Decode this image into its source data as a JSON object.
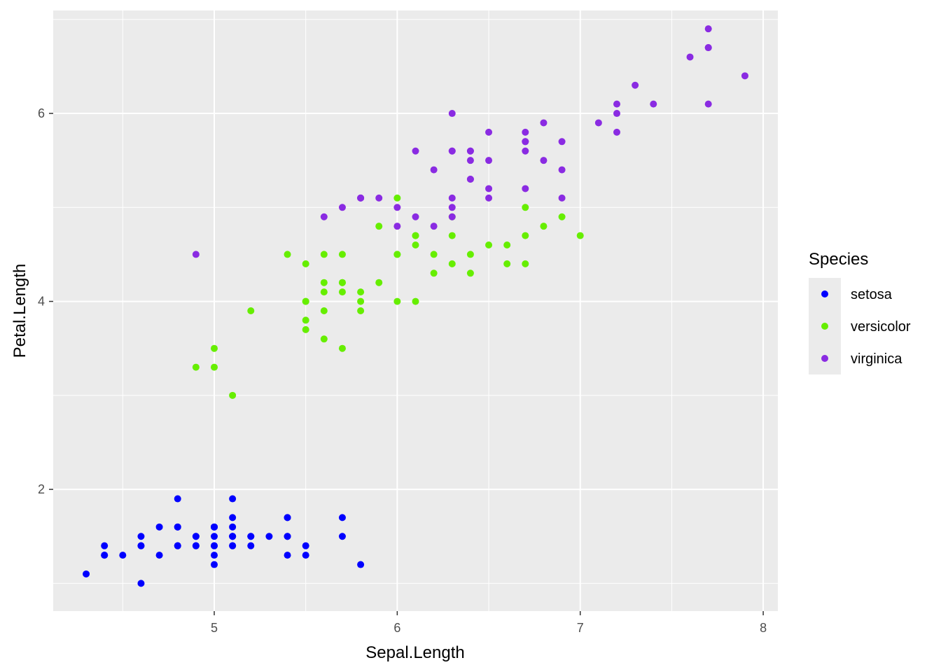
{
  "chart_data": {
    "type": "scatter",
    "xlabel": "Sepal.Length",
    "ylabel": "Petal.Length",
    "xlim": [
      4.12,
      8.08
    ],
    "ylim": [
      0.705,
      7.095
    ],
    "x_ticks": [
      5,
      6,
      7,
      8
    ],
    "x_tick_labels": [
      "5",
      "6",
      "7",
      "8"
    ],
    "y_ticks": [
      2,
      4,
      6
    ],
    "y_tick_labels": [
      "2",
      "4",
      "6"
    ],
    "grid": true,
    "legend": {
      "title": "Species",
      "position": "right"
    },
    "series": [
      {
        "name": "setosa",
        "color": "#0000ff",
        "points": [
          [
            5.1,
            1.4
          ],
          [
            4.9,
            1.4
          ],
          [
            4.7,
            1.3
          ],
          [
            4.6,
            1.5
          ],
          [
            5.0,
            1.4
          ],
          [
            5.4,
            1.7
          ],
          [
            4.6,
            1.4
          ],
          [
            5.0,
            1.5
          ],
          [
            4.4,
            1.4
          ],
          [
            4.9,
            1.5
          ],
          [
            5.4,
            1.5
          ],
          [
            4.8,
            1.6
          ],
          [
            4.8,
            1.4
          ],
          [
            4.3,
            1.1
          ],
          [
            5.8,
            1.2
          ],
          [
            5.7,
            1.5
          ],
          [
            5.4,
            1.3
          ],
          [
            5.1,
            1.4
          ],
          [
            5.7,
            1.7
          ],
          [
            5.1,
            1.5
          ],
          [
            5.4,
            1.7
          ],
          [
            5.1,
            1.5
          ],
          [
            4.6,
            1.0
          ],
          [
            5.1,
            1.7
          ],
          [
            4.8,
            1.9
          ],
          [
            5.0,
            1.6
          ],
          [
            5.0,
            1.6
          ],
          [
            5.2,
            1.5
          ],
          [
            5.2,
            1.4
          ],
          [
            4.7,
            1.6
          ],
          [
            4.8,
            1.6
          ],
          [
            5.4,
            1.5
          ],
          [
            5.2,
            1.5
          ],
          [
            5.5,
            1.4
          ],
          [
            4.9,
            1.5
          ],
          [
            5.0,
            1.2
          ],
          [
            5.5,
            1.3
          ],
          [
            4.9,
            1.4
          ],
          [
            4.4,
            1.3
          ],
          [
            5.1,
            1.5
          ],
          [
            5.0,
            1.3
          ],
          [
            4.5,
            1.3
          ],
          [
            4.4,
            1.3
          ],
          [
            5.0,
            1.6
          ],
          [
            5.1,
            1.9
          ],
          [
            4.8,
            1.4
          ],
          [
            5.1,
            1.6
          ],
          [
            4.6,
            1.4
          ],
          [
            5.3,
            1.5
          ],
          [
            5.0,
            1.4
          ]
        ]
      },
      {
        "name": "versicolor",
        "color": "#66ee00",
        "points": [
          [
            7.0,
            4.7
          ],
          [
            6.4,
            4.5
          ],
          [
            6.9,
            4.9
          ],
          [
            5.5,
            4.0
          ],
          [
            6.5,
            4.6
          ],
          [
            5.7,
            4.5
          ],
          [
            6.3,
            4.7
          ],
          [
            4.9,
            3.3
          ],
          [
            6.6,
            4.6
          ],
          [
            5.2,
            3.9
          ],
          [
            5.0,
            3.5
          ],
          [
            5.9,
            4.2
          ],
          [
            6.0,
            4.0
          ],
          [
            6.1,
            4.7
          ],
          [
            5.6,
            3.6
          ],
          [
            6.7,
            4.4
          ],
          [
            5.6,
            4.5
          ],
          [
            5.8,
            4.1
          ],
          [
            6.2,
            4.5
          ],
          [
            5.6,
            3.9
          ],
          [
            5.9,
            4.8
          ],
          [
            6.1,
            4.0
          ],
          [
            6.3,
            4.9
          ],
          [
            6.1,
            4.7
          ],
          [
            6.4,
            4.3
          ],
          [
            6.6,
            4.4
          ],
          [
            6.8,
            4.8
          ],
          [
            6.7,
            5.0
          ],
          [
            6.0,
            4.5
          ],
          [
            5.7,
            3.5
          ],
          [
            5.5,
            3.8
          ],
          [
            5.5,
            3.7
          ],
          [
            5.8,
            3.9
          ],
          [
            6.0,
            5.1
          ],
          [
            5.4,
            4.5
          ],
          [
            6.0,
            4.5
          ],
          [
            6.7,
            4.7
          ],
          [
            6.3,
            4.4
          ],
          [
            5.6,
            4.1
          ],
          [
            5.5,
            4.0
          ],
          [
            5.5,
            4.4
          ],
          [
            6.1,
            4.6
          ],
          [
            5.8,
            4.0
          ],
          [
            5.0,
            3.3
          ],
          [
            5.6,
            4.2
          ],
          [
            5.7,
            4.2
          ],
          [
            5.7,
            4.2
          ],
          [
            6.2,
            4.3
          ],
          [
            5.1,
            3.0
          ],
          [
            5.7,
            4.1
          ]
        ]
      },
      {
        "name": "virginica",
        "color": "#8a2be2",
        "points": [
          [
            6.3,
            6.0
          ],
          [
            5.8,
            5.1
          ],
          [
            7.1,
            5.9
          ],
          [
            6.3,
            5.6
          ],
          [
            6.5,
            5.8
          ],
          [
            7.6,
            6.6
          ],
          [
            4.9,
            4.5
          ],
          [
            7.3,
            6.3
          ],
          [
            6.7,
            5.8
          ],
          [
            7.2,
            6.1
          ],
          [
            6.5,
            5.1
          ],
          [
            6.4,
            5.3
          ],
          [
            6.8,
            5.5
          ],
          [
            5.7,
            5.0
          ],
          [
            5.8,
            5.1
          ],
          [
            6.4,
            5.3
          ],
          [
            6.5,
            5.5
          ],
          [
            7.7,
            6.7
          ],
          [
            7.7,
            6.9
          ],
          [
            6.0,
            5.0
          ],
          [
            6.9,
            5.7
          ],
          [
            5.6,
            4.9
          ],
          [
            7.7,
            6.7
          ],
          [
            6.3,
            4.9
          ],
          [
            6.7,
            5.7
          ],
          [
            7.2,
            6.0
          ],
          [
            6.2,
            4.8
          ],
          [
            6.1,
            4.9
          ],
          [
            6.4,
            5.6
          ],
          [
            7.2,
            5.8
          ],
          [
            7.4,
            6.1
          ],
          [
            7.9,
            6.4
          ],
          [
            6.4,
            5.6
          ],
          [
            6.3,
            5.1
          ],
          [
            6.1,
            5.6
          ],
          [
            7.7,
            6.1
          ],
          [
            6.3,
            5.6
          ],
          [
            6.4,
            5.5
          ],
          [
            6.0,
            4.8
          ],
          [
            6.9,
            5.4
          ],
          [
            6.7,
            5.6
          ],
          [
            6.9,
            5.1
          ],
          [
            5.8,
            5.1
          ],
          [
            6.8,
            5.9
          ],
          [
            6.7,
            5.7
          ],
          [
            6.7,
            5.2
          ],
          [
            6.3,
            5.0
          ],
          [
            6.5,
            5.2
          ],
          [
            6.2,
            5.4
          ],
          [
            5.9,
            5.1
          ]
        ]
      }
    ]
  }
}
